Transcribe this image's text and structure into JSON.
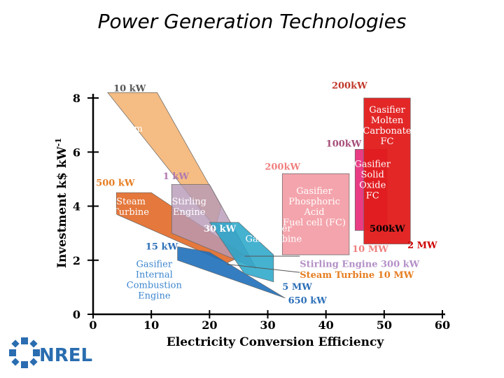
{
  "slide": {
    "title": "Power Generation Technologies"
  },
  "logo": {
    "text": "NREL",
    "color": "#2a6db0"
  },
  "chart_data": {
    "type": "area",
    "xlabel": "Electricity Conversion Efficiency",
    "ylabel": "Investment k$ kW",
    "ylabel_sup": "-1",
    "xlim": [
      0,
      60
    ],
    "ylim": [
      0,
      8
    ],
    "x_ticks": [
      "0",
      "10",
      "20",
      "30",
      "40",
      "50",
      "60"
    ],
    "y_ticks": [
      "0",
      "2",
      "4",
      "6",
      "8"
    ],
    "regions": [
      {
        "name": "steam-piston-engine",
        "label_lines": [
          "Steam",
          "Piston",
          "Engine"
        ],
        "color": "#f2a65a",
        "opacity": 0.75,
        "label_color": "#ffffff",
        "points": [
          [
            2.5,
            8.2
          ],
          [
            11,
            8.2
          ],
          [
            22,
            4.0
          ],
          [
            21,
            3.2
          ]
        ],
        "label_at": [
          6,
          6.5
        ]
      },
      {
        "name": "steam-turbine",
        "label_lines": [
          "Steam",
          "Turbine"
        ],
        "color": "#e0601a",
        "opacity": 0.85,
        "label_color": "#ffffff",
        "points": [
          [
            4,
            4.5
          ],
          [
            10,
            4.5
          ],
          [
            26,
            2.2
          ],
          [
            23,
            1.9
          ],
          [
            4,
            3.7
          ]
        ],
        "label_at": [
          6.5,
          4.0
        ]
      },
      {
        "name": "stirling-engine",
        "label_lines": [
          "Stirling",
          "Engine"
        ],
        "color": "#b69ab6",
        "opacity": 0.8,
        "label_color": "#ffffff",
        "points": [
          [
            13.5,
            4.8
          ],
          [
            20,
            4.8
          ],
          [
            28,
            1.7
          ],
          [
            13.5,
            3.0
          ]
        ],
        "label_at": [
          16.5,
          4.0
        ]
      },
      {
        "name": "gasifier-internal-combustion-engine",
        "label_lines": [
          "Gasifier",
          "Internal",
          "Combustion",
          "Engine"
        ],
        "color": "#1f6fba",
        "opacity": 0.9,
        "label_color": "#3d86cf",
        "points": [
          [
            14.5,
            2.5
          ],
          [
            20,
            2.3
          ],
          [
            33,
            0.6
          ],
          [
            14.5,
            2.0
          ]
        ],
        "label_at": [
          10.5,
          1.3
        ]
      },
      {
        "name": "gasifier-gas-turbine",
        "label_lines": [
          "Gasifier",
          "Gas Turbine"
        ],
        "color": "#25a5c8",
        "opacity": 0.85,
        "label_color": "#ffffff",
        "points": [
          [
            20,
            3.4
          ],
          [
            25,
            3.4
          ],
          [
            31,
            2.2
          ],
          [
            31,
            1.2
          ],
          [
            26,
            1.5
          ]
        ],
        "label_at": [
          31,
          3.0
        ]
      },
      {
        "name": "gasifier-phosphoric-acid-fc",
        "label_lines": [
          "Gasifier",
          "Phosphoric",
          "Acid",
          "Fuel cell (FC)"
        ],
        "color": "#f39aa3",
        "opacity": 0.9,
        "label_color": "#ffffff",
        "points": [
          [
            32.5,
            5.2
          ],
          [
            44,
            5.2
          ],
          [
            44,
            2.2
          ],
          [
            32.5,
            2.2
          ]
        ],
        "label_at": [
          38,
          4.0
        ]
      },
      {
        "name": "gasifier-solid-oxide-fc",
        "label_lines": [
          "Gasifier",
          "Solid",
          "Oxide",
          "FC"
        ],
        "color": "#e8317d",
        "opacity": 0.95,
        "label_color": "#ffffff",
        "points": [
          [
            45,
            6.1
          ],
          [
            50.5,
            6.1
          ],
          [
            50.5,
            3.1
          ],
          [
            45,
            3.1
          ]
        ],
        "label_at": [
          48,
          5.0
        ]
      },
      {
        "name": "gasifier-molten-carbonate-fc",
        "label_lines": [
          "Gasifier",
          "Molten",
          "Carbonate",
          "FC"
        ],
        "color": "#e11b1b",
        "opacity": 0.95,
        "label_color": "#ffffff",
        "points": [
          [
            46.5,
            8.0
          ],
          [
            54.5,
            8.0
          ],
          [
            54.5,
            2.6
          ],
          [
            46.5,
            2.6
          ]
        ],
        "label_at": [
          50.5,
          7.0
        ]
      }
    ],
    "annotations": [
      {
        "text": "10 kW",
        "color": "#555555",
        "at": [
          3.5,
          8.25
        ],
        "anchor": "start"
      },
      {
        "text": "200kW",
        "color": "#c0392b",
        "at": [
          41,
          8.35
        ],
        "anchor": "start"
      },
      {
        "text": "100kW",
        "color": "#a64d79",
        "at": [
          40,
          6.2
        ],
        "anchor": "start"
      },
      {
        "text": "200kW",
        "color": "#f08080",
        "at": [
          29.5,
          5.35
        ],
        "anchor": "start"
      },
      {
        "text": "1 kW",
        "color": "#b07ab0",
        "at": [
          12,
          5.0
        ],
        "anchor": "start"
      },
      {
        "text": "500 kW",
        "color": "#e67e22",
        "at": [
          0.5,
          4.75
        ],
        "anchor": "start"
      },
      {
        "text": "500kW",
        "color": "#000000",
        "at": [
          47.5,
          3.05
        ],
        "anchor": "start"
      },
      {
        "text": "15 kW",
        "color": "#2c6fb7",
        "at": [
          9,
          2.4
        ],
        "anchor": "start"
      },
      {
        "text": "30 kW",
        "color": "#ffffff",
        "at": [
          19,
          3.05
        ],
        "anchor": "start"
      },
      {
        "text": "10 MW",
        "color": "#f08080",
        "at": [
          44.5,
          2.3
        ],
        "anchor": "start"
      },
      {
        "text": "2 MW",
        "color": "#cc0000",
        "at": [
          54,
          2.45
        ],
        "anchor": "start"
      },
      {
        "text": "Stirling Engine 300 kW",
        "color": "#b390c7",
        "at": [
          35.5,
          1.75
        ],
        "anchor": "start"
      },
      {
        "text": "Steam Turbine 10 MW",
        "color": "#e67e22",
        "at": [
          35.5,
          1.35
        ],
        "anchor": "start"
      },
      {
        "text": "5 MW",
        "color": "#2c6fb7",
        "at": [
          32.5,
          0.9
        ],
        "anchor": "start"
      },
      {
        "text": "650 kW",
        "color": "#2c6fb7",
        "at": [
          33.5,
          0.4
        ],
        "anchor": "start"
      }
    ],
    "leader_lines": [
      {
        "from": [
          26,
          2.15
        ],
        "to": [
          35.5,
          2.15
        ]
      },
      {
        "from": [
          23,
          1.85
        ],
        "to": [
          35.5,
          1.55
        ]
      }
    ]
  }
}
